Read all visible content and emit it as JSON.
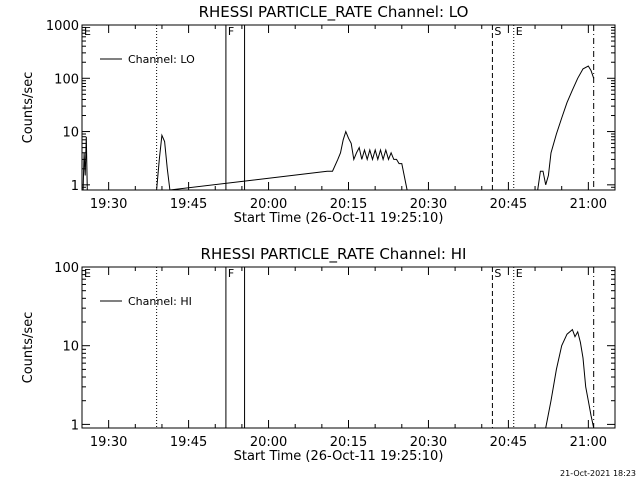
{
  "chart_data": [
    {
      "type": "line",
      "title": "RHESSI PARTICLE_RATE Channel: LO",
      "xlabel": "Start Time (26-Oct-11 19:25:10)",
      "ylabel": "Counts/sec",
      "yscale": "log",
      "ylim": [
        0.8,
        1000
      ],
      "xlim": [
        "19:25",
        "21:05"
      ],
      "yticks": [
        "1",
        "10",
        "100",
        "1000"
      ],
      "xticks": [
        "19:30",
        "19:45",
        "20:00",
        "20:15",
        "20:30",
        "20:45",
        "21:00"
      ],
      "grid": false,
      "legend": {
        "position": "top-left",
        "entries": [
          "Channel: LO"
        ]
      },
      "event_markers": [
        {
          "label": "E",
          "time": "19:25",
          "style": "solid"
        },
        {
          "label": "",
          "time": "19:39",
          "style": "dotted"
        },
        {
          "label": "F",
          "time": "19:52",
          "style": "solid"
        },
        {
          "label": "",
          "time": "19:55.5",
          "style": "solid"
        },
        {
          "label": "S",
          "time": "20:42",
          "style": "dashed"
        },
        {
          "label": "E",
          "time": "20:46",
          "style": "dotted"
        },
        {
          "label": "",
          "time": "21:01",
          "style": "dashdot"
        }
      ],
      "series": [
        {
          "name": "Channel: LO",
          "x": [
            "19:25.2",
            "19:25.4",
            "19:25.6",
            "19:25.8",
            "19:26",
            "19:39",
            "19:39.5",
            "19:40",
            "19:40.5",
            "19:41",
            "19:41.5",
            "20:11",
            "20:12",
            "20:13",
            "20:13.5",
            "20:14",
            "20:14.5",
            "20:15",
            "20:15.5",
            "20:16",
            "20:16.5",
            "20:17",
            "20:17.5",
            "20:18",
            "20:18.5",
            "20:19",
            "20:19.5",
            "20:20",
            "20:20.5",
            "20:21",
            "20:21.5",
            "20:22",
            "20:22.5",
            "20:23",
            "20:23.5",
            "20:24",
            "20:24.5",
            "20:25",
            "20:26",
            "20:50.5",
            "20:51",
            "20:51.5",
            "20:52",
            "20:52.5",
            "20:53",
            "20:54",
            "20:55",
            "20:56",
            "20:57",
            "20:58",
            "20:59",
            "21:00",
            "21:00.5",
            "21:01"
          ],
          "y": [
            0.8,
            4,
            1.5,
            8,
            0.8,
            0.8,
            3,
            8.5,
            6.5,
            2,
            0.8,
            1.8,
            1.8,
            3,
            4,
            7,
            10,
            7.5,
            6,
            3,
            4,
            5,
            3,
            4.5,
            3,
            4.5,
            3,
            4.5,
            3,
            4.5,
            3,
            4.5,
            3,
            4,
            3,
            3,
            2.5,
            2.5,
            0.8,
            0.8,
            1.8,
            1.8,
            1,
            1.5,
            4,
            9,
            18,
            35,
            60,
            100,
            150,
            170,
            140,
            100
          ]
        }
      ]
    },
    {
      "type": "line",
      "title": "RHESSI PARTICLE_RATE Channel: HI",
      "xlabel": "Start Time (26-Oct-11 19:25:10)",
      "ylabel": "Counts/sec",
      "yscale": "log",
      "ylim": [
        0.9,
        100
      ],
      "xlim": [
        "19:25",
        "21:05"
      ],
      "yticks": [
        "1",
        "10",
        "100"
      ],
      "xticks": [
        "19:30",
        "19:45",
        "20:00",
        "20:15",
        "20:30",
        "20:45",
        "21:00"
      ],
      "grid": false,
      "legend": {
        "position": "top-left",
        "entries": [
          "Channel: HI"
        ]
      },
      "event_markers": [
        {
          "label": "E",
          "time": "19:25",
          "style": "none"
        },
        {
          "label": "",
          "time": "19:39",
          "style": "dotted"
        },
        {
          "label": "F",
          "time": "19:52",
          "style": "solid"
        },
        {
          "label": "",
          "time": "19:55.5",
          "style": "solid"
        },
        {
          "label": "S",
          "time": "20:42",
          "style": "dashed"
        },
        {
          "label": "E",
          "time": "20:46",
          "style": "dotted"
        },
        {
          "label": "",
          "time": "21:01",
          "style": "dashdot"
        }
      ],
      "series": [
        {
          "name": "Channel: HI",
          "x": [
            "20:52",
            "20:53",
            "20:54",
            "20:55",
            "20:56",
            "20:57",
            "20:57.5",
            "20:58",
            "20:58.5",
            "20:59",
            "20:59.5",
            "21:00",
            "21:00.5",
            "21:01"
          ],
          "y": [
            0.9,
            2,
            5,
            10,
            14,
            16,
            13,
            15,
            11,
            7,
            3,
            2,
            1.3,
            0.9
          ]
        }
      ]
    }
  ],
  "footer_stamp": "21-Oct-2021 18:23"
}
